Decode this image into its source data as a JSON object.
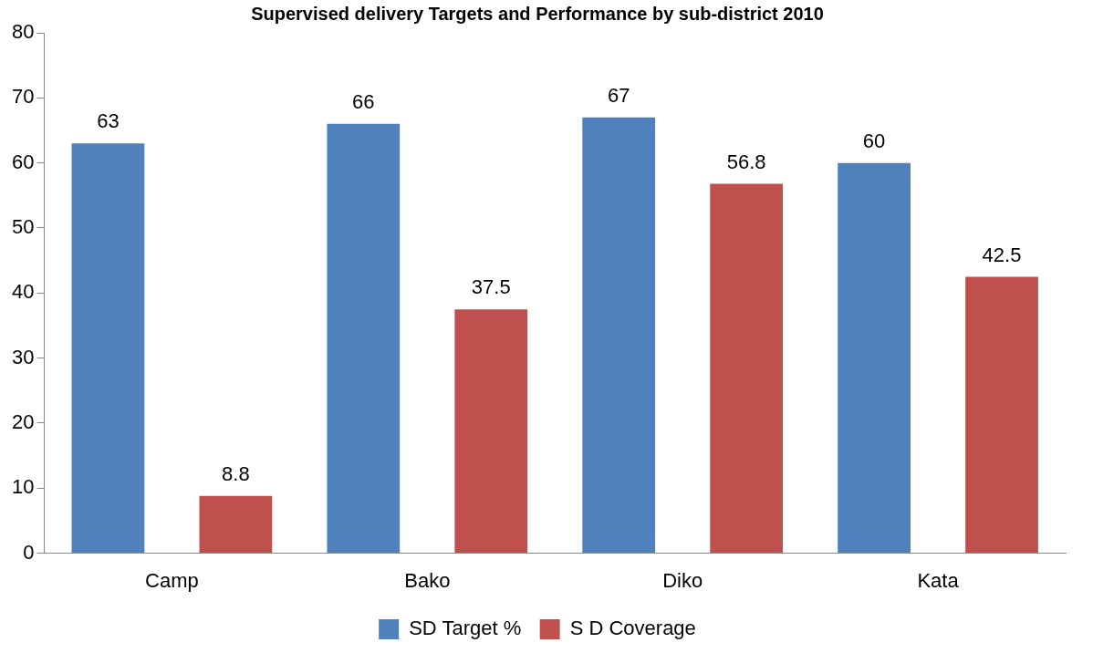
{
  "chart_data": {
    "type": "bar",
    "title": "Supervised delivery Targets and Performance by sub-district 2010",
    "categories": [
      "Camp",
      "Bako",
      "Diko",
      "Kata"
    ],
    "series": [
      {
        "name": "SD Target %",
        "color": "#4f81bd",
        "values": [
          63,
          66,
          67,
          60
        ]
      },
      {
        "name": "S D Coverage",
        "color": "#c0504d",
        "values": [
          8.8,
          37.5,
          56.8,
          42.5
        ]
      }
    ],
    "ylim": [
      0,
      80
    ],
    "yticks": [
      0,
      10,
      20,
      30,
      40,
      50,
      60,
      70,
      80
    ],
    "grid": false,
    "legend": "bottom",
    "data_labels": true
  }
}
